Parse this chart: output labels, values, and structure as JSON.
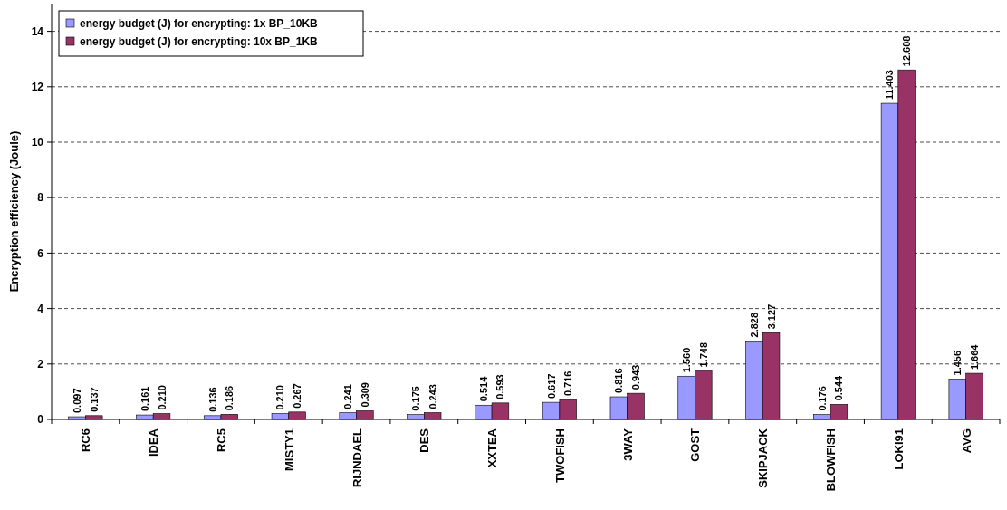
{
  "chart_data": {
    "type": "bar",
    "ylabel": "Encryption efficiency (Joule)",
    "categories": [
      "RC6",
      "IDEA",
      "RC5",
      "MISTY1",
      "RIJNDAEL",
      "DES",
      "XXTEA",
      "TWOFISH",
      "3WAY",
      "GOST",
      "SKIPJACK",
      "BLOWFISH",
      "LOKI91",
      "AVG"
    ],
    "series": [
      {
        "name": "energy budget (J) for encrypting: 1x BP_10KB",
        "color": "#9999ff",
        "values": [
          0.097,
          0.161,
          0.136,
          0.21,
          0.241,
          0.175,
          0.514,
          0.617,
          0.816,
          1.56,
          2.828,
          0.176,
          11.403,
          1.456
        ],
        "value_labels": [
          "0.097",
          "0.161",
          "0.136",
          "0.210",
          "0.241",
          "0.175",
          "0.514",
          "0.617",
          "0.816",
          "1.560",
          "2.828",
          "0.176",
          "11.403",
          "1.456"
        ]
      },
      {
        "name": "energy budget (J) for encrypting: 10x BP_1KB",
        "color": "#993366",
        "values": [
          0.137,
          0.21,
          0.186,
          0.267,
          0.309,
          0.243,
          0.593,
          0.716,
          0.943,
          1.748,
          3.127,
          0.544,
          12.608,
          1.664
        ],
        "value_labels": [
          "0.137",
          "0.210",
          "0.186",
          "0.267",
          "0.309",
          "0.243",
          "0.593",
          "0.716",
          "0.943",
          "1.748",
          "3.127",
          "0.544",
          "12.608",
          "1.664"
        ]
      }
    ],
    "ylim": [
      0,
      15
    ],
    "yticks": [
      0,
      2,
      4,
      6,
      8,
      10,
      12,
      14
    ],
    "grid": "y",
    "legend": "top left"
  }
}
